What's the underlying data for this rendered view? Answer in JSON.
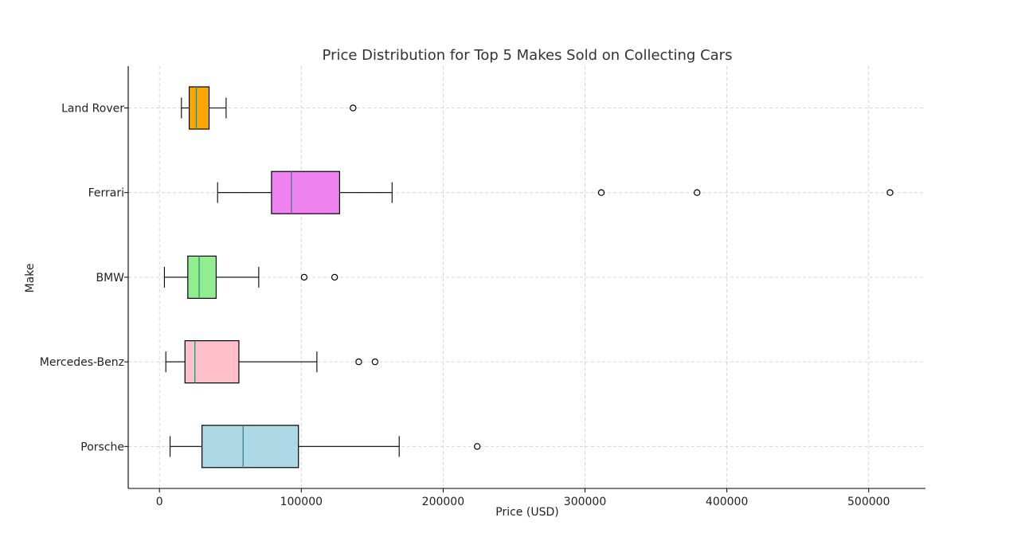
{
  "chart_data": {
    "type": "boxplot",
    "orientation": "horizontal",
    "title": "Price Distribution for Top 5 Makes Sold on Collecting Cars",
    "xlabel": "Price (USD)",
    "ylabel": "Make",
    "xlim": [
      -22000,
      540000
    ],
    "xticks": [
      0,
      100000,
      200000,
      300000,
      400000,
      500000
    ],
    "grid": true,
    "categories": [
      "Land Rover",
      "Ferrari",
      "BMW",
      "Mercedes-Benz",
      "Porsche"
    ],
    "boxes": [
      {
        "category": "Land Rover",
        "whisker_low": 15500,
        "q1": 21000,
        "median": 26000,
        "q3": 35000,
        "whisker_high": 47000,
        "outliers": [
          136500
        ],
        "color": "#FFA500"
      },
      {
        "category": "Ferrari",
        "whisker_low": 41000,
        "q1": 79000,
        "median": 93000,
        "q3": 127000,
        "whisker_high": 164000,
        "outliers": [
          311500,
          379000,
          515000
        ],
        "color": "#EE82EE"
      },
      {
        "category": "BMW",
        "whisker_low": 3500,
        "q1": 20000,
        "median": 28000,
        "q3": 40000,
        "whisker_high": 70000,
        "outliers": [
          102000,
          123500
        ],
        "color": "#90EE90"
      },
      {
        "category": "Mercedes-Benz",
        "whisker_low": 4500,
        "q1": 18000,
        "median": 25000,
        "q3": 56000,
        "whisker_high": 111000,
        "outliers": [
          140500,
          152000
        ],
        "color": "#FFC0CB"
      },
      {
        "category": "Porsche",
        "whisker_low": 7500,
        "q1": 30000,
        "median": 59000,
        "q3": 98000,
        "whisker_high": 169000,
        "outliers": [
          224000
        ],
        "color": "#ADD8E6"
      }
    ]
  },
  "style": {
    "median_color": "#2E8B7A",
    "grid_color": "#CCCCCC",
    "axis_color": "#000000",
    "box_edge_color": "#000000"
  }
}
